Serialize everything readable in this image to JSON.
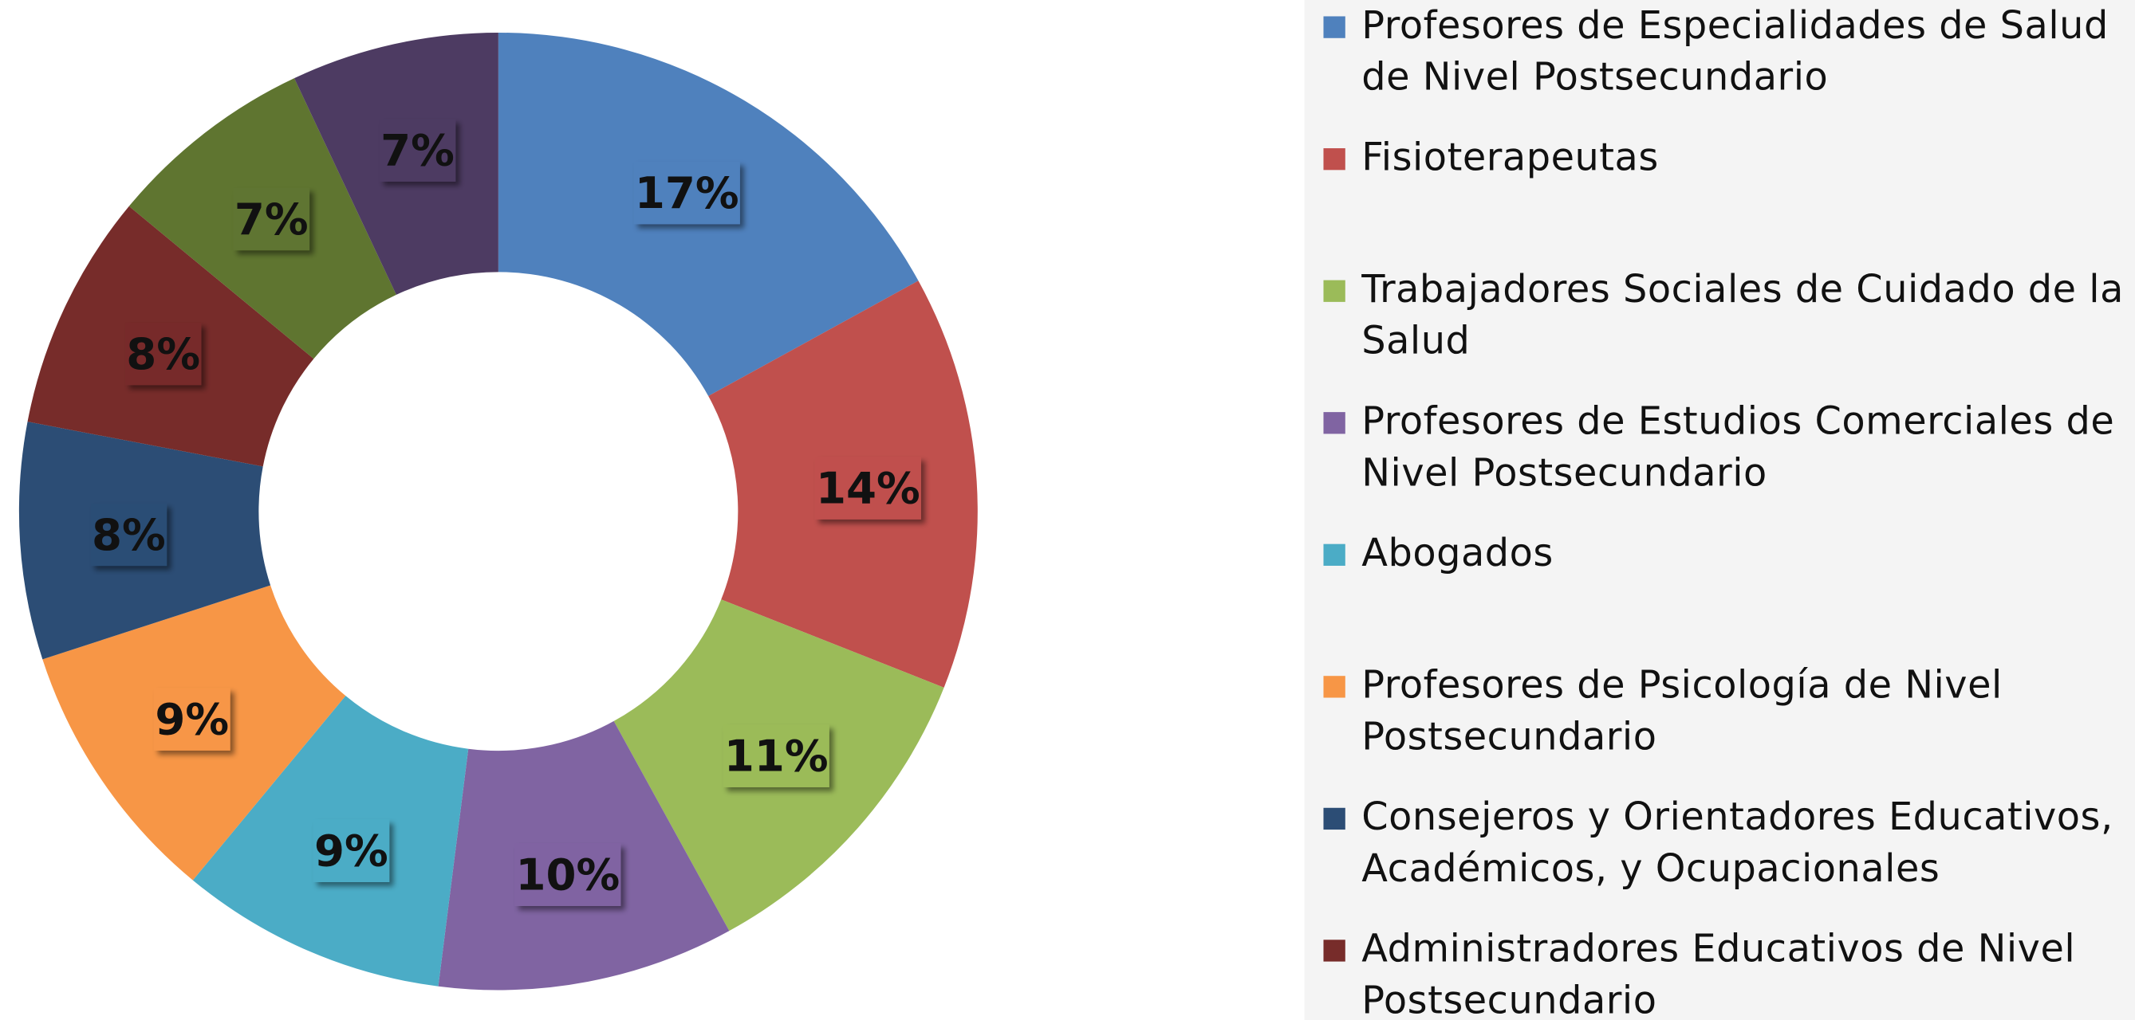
{
  "chart_data": {
    "type": "donut",
    "categories": [
      "Profesores de Especialidades de Salud de Nivel Postsecundario",
      "Fisioterapeutas",
      "Trabajadores Sociales de Cuidado de la Salud",
      "Profesores de Estudios Comerciales de Nivel Postsecundario",
      "Abogados",
      "Profesores de Psicología de Nivel Postsecundario",
      "Consejeros y Orientadores Educativos, Académicos, y Ocupacionales",
      "Administradores Educativos de Nivel Postsecundario",
      null,
      null
    ],
    "values": [
      17,
      14,
      11,
      10,
      9,
      9,
      8,
      8,
      7,
      7
    ],
    "value_labels": [
      "17%",
      "14%",
      "11%",
      "10%",
      "9%",
      "9%",
      "8%",
      "8%",
      "7%",
      "7%"
    ],
    "colors": [
      "#4f81bd",
      "#c0504d",
      "#9bbb59",
      "#8064a2",
      "#4bacc6",
      "#f79646",
      "#2c4d75",
      "#772c2a",
      "#5f7530",
      "#4d3b62"
    ],
    "legend": "right"
  }
}
